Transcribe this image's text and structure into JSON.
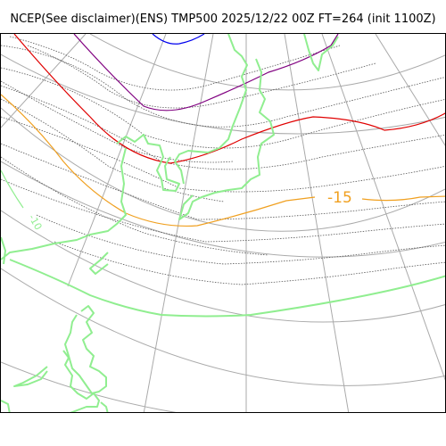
{
  "title": "NCEP(See disclaimer)(ENS) TMP500 2025/12/22 00Z FT=264 (init 1100Z)",
  "colors": {
    "grid": "#aaaaaa",
    "coastline": "#90ee90",
    "ensemble_members": "#555555",
    "contour_minus_15": "#f0a020",
    "contour_red": "#e00000",
    "contour_purple": "#800080",
    "contour_blue": "#0000ee",
    "contour_minus_10_label": "#90ee90"
  },
  "contour_labels": {
    "minus_15": "-15",
    "minus_10": "-10"
  }
}
